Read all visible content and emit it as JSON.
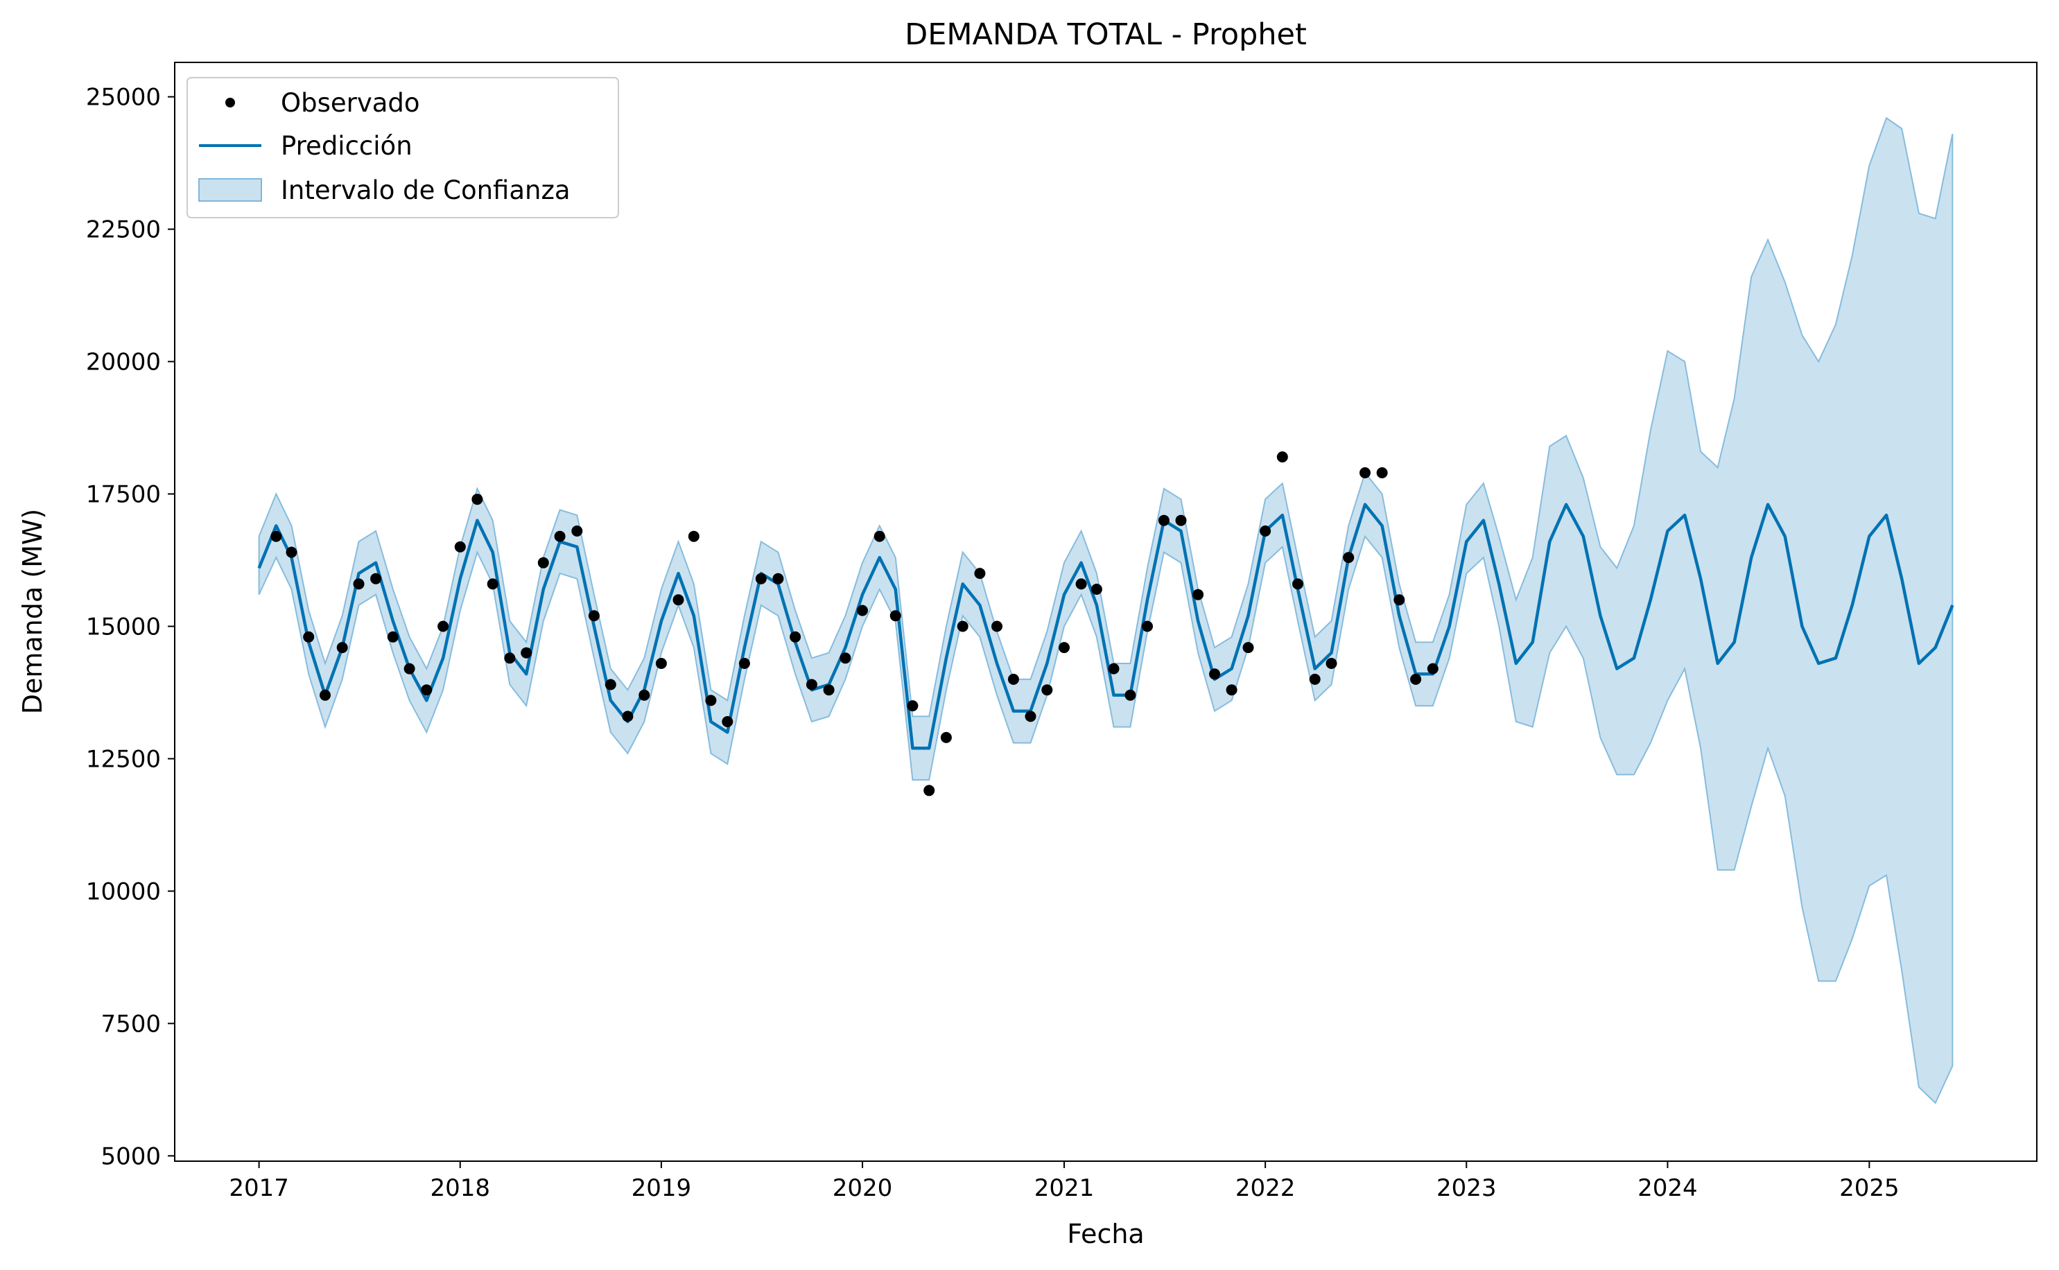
{
  "chart_data": {
    "type": "line",
    "title": "DEMANDA TOTAL - Prophet",
    "xlabel": "Fecha",
    "ylabel": "Demanda (MW)",
    "xlim": [
      "2016-08-01",
      "2025-11-01"
    ],
    "ylim": [
      4900,
      25650
    ],
    "x_ticks": [
      "2017",
      "2018",
      "2019",
      "2020",
      "2021",
      "2022",
      "2023",
      "2024",
      "2025"
    ],
    "y_ticks": [
      5000,
      7500,
      10000,
      12500,
      15000,
      17500,
      20000,
      22500,
      25000
    ],
    "grid": false,
    "legend": {
      "position": "top-left",
      "entries": [
        {
          "label": "Observado",
          "kind": "marker",
          "color": "#000000"
        },
        {
          "label": "Predicción",
          "kind": "line",
          "color": "#0072B2"
        },
        {
          "label": "Intervalo de Confianza",
          "kind": "band",
          "color": "#a6cde6"
        }
      ]
    },
    "series": [
      {
        "name": "Observado",
        "style": "scatter",
        "color": "#000000",
        "x": [
          "2017-02-01",
          "2017-03-01",
          "2017-04-01",
          "2017-05-01",
          "2017-06-01",
          "2017-07-01",
          "2017-08-01",
          "2017-09-01",
          "2017-10-01",
          "2017-11-01",
          "2017-12-01",
          "2018-01-01",
          "2018-02-01",
          "2018-03-01",
          "2018-04-01",
          "2018-05-01",
          "2018-06-01",
          "2018-07-01",
          "2018-08-01",
          "2018-09-01",
          "2018-10-01",
          "2018-11-01",
          "2018-12-01",
          "2019-01-01",
          "2019-02-01",
          "2019-03-01",
          "2019-04-01",
          "2019-05-01",
          "2019-06-01",
          "2019-07-01",
          "2019-08-01",
          "2019-09-01",
          "2019-10-01",
          "2019-11-01",
          "2019-12-01",
          "2020-01-01",
          "2020-02-01",
          "2020-03-01",
          "2020-04-01",
          "2020-05-01",
          "2020-06-01",
          "2020-07-01",
          "2020-08-01",
          "2020-09-01",
          "2020-10-01",
          "2020-11-01",
          "2020-12-01",
          "2021-01-01",
          "2021-02-01",
          "2021-03-01",
          "2021-04-01",
          "2021-05-01",
          "2021-06-01",
          "2021-07-01",
          "2021-08-01",
          "2021-09-01",
          "2021-10-01",
          "2021-11-01",
          "2021-12-01",
          "2022-01-01",
          "2022-02-01",
          "2022-03-01",
          "2022-04-01",
          "2022-05-01",
          "2022-06-01",
          "2022-07-01",
          "2022-08-01",
          "2022-09-01",
          "2022-10-01",
          "2022-11-01"
        ],
        "y": [
          16700,
          16400,
          14800,
          13700,
          14600,
          15800,
          15900,
          14800,
          14200,
          13800,
          15000,
          16500,
          17400,
          15800,
          14400,
          14500,
          16200,
          16700,
          16800,
          15200,
          13900,
          13300,
          13700,
          14300,
          15500,
          16700,
          13600,
          13200,
          14300,
          15900,
          15900,
          14800,
          13900,
          13800,
          14400,
          15300,
          16700,
          15200,
          13500,
          11900,
          12900,
          15000,
          16000,
          15000,
          14000,
          13300,
          13800,
          14600,
          15800,
          15700,
          14200,
          13700,
          15000,
          17000,
          17000,
          15600,
          14100,
          13800,
          14600,
          16800,
          18200,
          15800,
          14000,
          14300,
          16300,
          17900,
          17900,
          15500,
          14000,
          14200
        ]
      },
      {
        "name": "Predicción",
        "style": "line",
        "color": "#0072B2",
        "x": [
          "2017-01-01",
          "2017-02-01",
          "2017-03-01",
          "2017-04-01",
          "2017-05-01",
          "2017-06-01",
          "2017-07-01",
          "2017-08-01",
          "2017-09-01",
          "2017-10-01",
          "2017-11-01",
          "2017-12-01",
          "2018-01-01",
          "2018-02-01",
          "2018-03-01",
          "2018-04-01",
          "2018-05-01",
          "2018-06-01",
          "2018-07-01",
          "2018-08-01",
          "2018-09-01",
          "2018-10-01",
          "2018-11-01",
          "2018-12-01",
          "2019-01-01",
          "2019-02-01",
          "2019-03-01",
          "2019-04-01",
          "2019-05-01",
          "2019-06-01",
          "2019-07-01",
          "2019-08-01",
          "2019-09-01",
          "2019-10-01",
          "2019-11-01",
          "2019-12-01",
          "2020-01-01",
          "2020-02-01",
          "2020-03-01",
          "2020-04-01",
          "2020-05-01",
          "2020-06-01",
          "2020-07-01",
          "2020-08-01",
          "2020-09-01",
          "2020-10-01",
          "2020-11-01",
          "2020-12-01",
          "2021-01-01",
          "2021-02-01",
          "2021-03-01",
          "2021-04-01",
          "2021-05-01",
          "2021-06-01",
          "2021-07-01",
          "2021-08-01",
          "2021-09-01",
          "2021-10-01",
          "2021-11-01",
          "2021-12-01",
          "2022-01-01",
          "2022-02-01",
          "2022-03-01",
          "2022-04-01",
          "2022-05-01",
          "2022-06-01",
          "2022-07-01",
          "2022-08-01",
          "2022-09-01",
          "2022-10-01",
          "2022-11-01",
          "2022-12-01",
          "2023-01-01",
          "2023-02-01",
          "2023-03-01",
          "2023-04-01",
          "2023-05-01",
          "2023-06-01",
          "2023-07-01",
          "2023-08-01",
          "2023-09-01",
          "2023-10-01",
          "2023-11-01",
          "2023-12-01",
          "2024-01-01",
          "2024-02-01",
          "2024-03-01",
          "2024-04-01",
          "2024-05-01",
          "2024-06-01",
          "2024-07-01",
          "2024-08-01",
          "2024-09-01",
          "2024-10-01",
          "2024-11-01",
          "2024-12-01",
          "2025-01-01",
          "2025-02-01",
          "2025-03-01",
          "2025-04-01",
          "2025-05-01",
          "2025-06-01"
        ],
        "y": [
          16100,
          16900,
          16300,
          14700,
          13700,
          14600,
          16000,
          16200,
          15100,
          14200,
          13600,
          14400,
          15900,
          17000,
          16400,
          14500,
          14100,
          15700,
          16600,
          16500,
          15000,
          13600,
          13200,
          13800,
          15100,
          16000,
          15200,
          13200,
          13000,
          14600,
          16000,
          15800,
          14700,
          13800,
          13900,
          14600,
          15600,
          16300,
          15700,
          12700,
          12700,
          14400,
          15800,
          15400,
          14300,
          13400,
          13400,
          14300,
          15600,
          16200,
          15400,
          13700,
          13700,
          15500,
          17000,
          16800,
          15100,
          14000,
          14200,
          15200,
          16800,
          17100,
          15700,
          14200,
          14500,
          16300,
          17300,
          16900,
          15200,
          14100,
          14100,
          15000,
          16600,
          17000,
          15800,
          14300,
          14700,
          16600,
          17300,
          16700,
          15200,
          14200,
          14400,
          15500,
          16800,
          17100,
          15900,
          14300,
          14700,
          16300,
          17300,
          16700,
          15000,
          14300,
          14400,
          15400,
          16700,
          17100,
          15900,
          14300,
          14600,
          15400
        ]
      },
      {
        "name": "Intervalo de Confianza",
        "style": "band",
        "color": "#a6cde6",
        "x": [
          "2017-01-01",
          "2017-02-01",
          "2017-03-01",
          "2017-04-01",
          "2017-05-01",
          "2017-06-01",
          "2017-07-01",
          "2017-08-01",
          "2017-09-01",
          "2017-10-01",
          "2017-11-01",
          "2017-12-01",
          "2018-01-01",
          "2018-02-01",
          "2018-03-01",
          "2018-04-01",
          "2018-05-01",
          "2018-06-01",
          "2018-07-01",
          "2018-08-01",
          "2018-09-01",
          "2018-10-01",
          "2018-11-01",
          "2018-12-01",
          "2019-01-01",
          "2019-02-01",
          "2019-03-01",
          "2019-04-01",
          "2019-05-01",
          "2019-06-01",
          "2019-07-01",
          "2019-08-01",
          "2019-09-01",
          "2019-10-01",
          "2019-11-01",
          "2019-12-01",
          "2020-01-01",
          "2020-02-01",
          "2020-03-01",
          "2020-04-01",
          "2020-05-01",
          "2020-06-01",
          "2020-07-01",
          "2020-08-01",
          "2020-09-01",
          "2020-10-01",
          "2020-11-01",
          "2020-12-01",
          "2021-01-01",
          "2021-02-01",
          "2021-03-01",
          "2021-04-01",
          "2021-05-01",
          "2021-06-01",
          "2021-07-01",
          "2021-08-01",
          "2021-09-01",
          "2021-10-01",
          "2021-11-01",
          "2021-12-01",
          "2022-01-01",
          "2022-02-01",
          "2022-03-01",
          "2022-04-01",
          "2022-05-01",
          "2022-06-01",
          "2022-07-01",
          "2022-08-01",
          "2022-09-01",
          "2022-10-01",
          "2022-11-01",
          "2022-12-01",
          "2023-01-01",
          "2023-02-01",
          "2023-03-01",
          "2023-04-01",
          "2023-05-01",
          "2023-06-01",
          "2023-07-01",
          "2023-08-01",
          "2023-09-01",
          "2023-10-01",
          "2023-11-01",
          "2023-12-01",
          "2024-01-01",
          "2024-02-01",
          "2024-03-01",
          "2024-04-01",
          "2024-05-01",
          "2024-06-01",
          "2024-07-01",
          "2024-08-01",
          "2024-09-01",
          "2024-10-01",
          "2024-11-01",
          "2024-12-01",
          "2025-01-01",
          "2025-02-01",
          "2025-03-01",
          "2025-04-01",
          "2025-05-01",
          "2025-06-01"
        ],
        "upper": [
          16700,
          17500,
          16900,
          15300,
          14300,
          15200,
          16600,
          16800,
          15700,
          14800,
          14200,
          15000,
          16500,
          17600,
          17000,
          15100,
          14700,
          16300,
          17200,
          17100,
          15600,
          14200,
          13800,
          14400,
          15700,
          16600,
          15800,
          13800,
          13600,
          15200,
          16600,
          16400,
          15300,
          14400,
          14500,
          15200,
          16200,
          16900,
          16300,
          13300,
          13300,
          15000,
          16400,
          16000,
          14900,
          14000,
          14000,
          14900,
          16200,
          16800,
          16000,
          14300,
          14300,
          16100,
          17600,
          17400,
          15700,
          14600,
          14800,
          15800,
          17400,
          17700,
          16300,
          14800,
          15100,
          16900,
          17900,
          17500,
          15800,
          14700,
          14700,
          15600,
          17300,
          17700,
          16700,
          15500,
          16300,
          18400,
          18600,
          17800,
          16500,
          16100,
          16900,
          18700,
          20200,
          20000,
          18300,
          18000,
          19300,
          21600,
          22300,
          21500,
          20500,
          20000,
          20700,
          22000,
          23700,
          24600,
          24400,
          22800,
          22700,
          24300
        ],
        "lower": [
          15600,
          16300,
          15700,
          14100,
          13100,
          14000,
          15400,
          15600,
          14500,
          13600,
          13000,
          13800,
          15300,
          16400,
          15800,
          13900,
          13500,
          15100,
          16000,
          15900,
          14400,
          13000,
          12600,
          13200,
          14500,
          15400,
          14600,
          12600,
          12400,
          14000,
          15400,
          15200,
          14100,
          13200,
          13300,
          14000,
          15000,
          15700,
          15100,
          12100,
          12100,
          13800,
          15200,
          14800,
          13700,
          12800,
          12800,
          13700,
          15000,
          15600,
          14800,
          13100,
          13100,
          14900,
          16400,
          16200,
          14500,
          13400,
          13600,
          14600,
          16200,
          16500,
          15100,
          13600,
          13900,
          15700,
          16700,
          16300,
          14600,
          13500,
          13500,
          14400,
          16000,
          16300,
          15000,
          13200,
          13100,
          14500,
          15000,
          14400,
          12900,
          12200,
          12200,
          12800,
          13600,
          14200,
          12700,
          10400,
          10400,
          11600,
          12700,
          11800,
          9700,
          8300,
          8300,
          9100,
          10100,
          10300,
          8500,
          6300,
          6000,
          6700
        ]
      }
    ]
  }
}
